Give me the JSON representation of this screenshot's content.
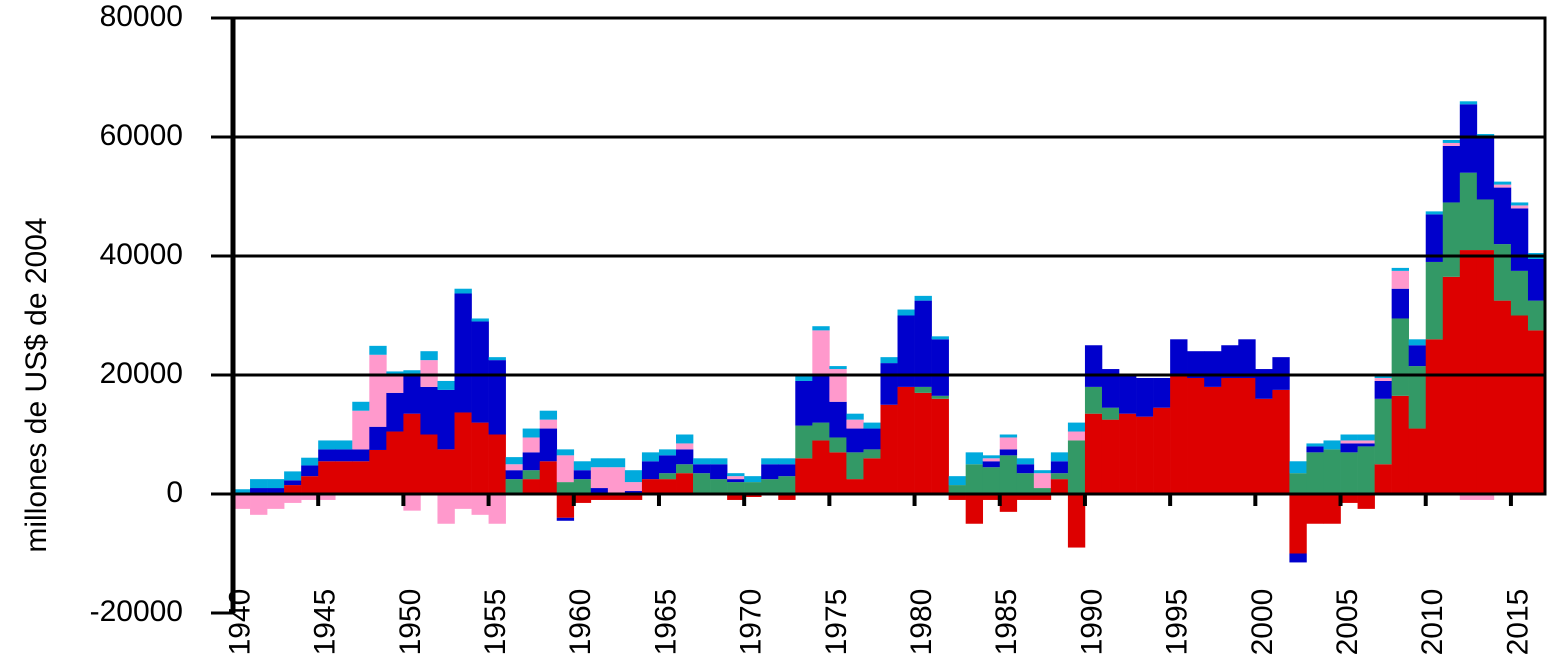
{
  "chart_data": {
    "type": "stacked-bar",
    "y_label": "millones de US$ de 2004",
    "x": [
      1940,
      1941,
      1942,
      1943,
      1944,
      1945,
      1946,
      1947,
      1948,
      1949,
      1950,
      1951,
      1952,
      1953,
      1954,
      1955,
      1956,
      1957,
      1958,
      1959,
      1960,
      1961,
      1962,
      1963,
      1964,
      1965,
      1966,
      1967,
      1968,
      1969,
      1970,
      1971,
      1972,
      1973,
      1974,
      1975,
      1976,
      1977,
      1978,
      1979,
      1980,
      1981,
      1982,
      1983,
      1984,
      1985,
      1986,
      1987,
      1988,
      1989,
      1990,
      1991,
      1992,
      1993,
      1994,
      1995,
      1996,
      1997,
      1998,
      1999,
      2000,
      2001,
      2002,
      2003,
      2004,
      2005,
      2006,
      2007,
      2008,
      2009,
      2010,
      2011,
      2012,
      2013,
      2014,
      2015,
      2016
    ],
    "xlim": [
      1939.5,
      2016.5
    ],
    "xticks": [
      1940,
      1945,
      1950,
      1955,
      1960,
      1965,
      1970,
      1975,
      1980,
      1985,
      1990,
      1995,
      2000,
      2005,
      2010,
      2015
    ],
    "ylim": [
      -20000,
      80000
    ],
    "yticks": [
      -20000,
      0,
      20000,
      40000,
      60000,
      80000
    ],
    "grid": true,
    "series": [
      {
        "color": "#dd0000",
        "values": [
          0,
          0,
          0,
          1500,
          3000,
          5500,
          5500,
          5500,
          7400,
          10500,
          13500,
          10000,
          7500,
          13700,
          12000,
          10000,
          0,
          2500,
          5500,
          -4000,
          -1500,
          -1000,
          -1000,
          -1000,
          2500,
          2500,
          3500,
          0,
          0,
          -1000,
          -500,
          0,
          -1000,
          6000,
          9000,
          7000,
          2500,
          6000,
          15000,
          18000,
          17000,
          16000,
          -1000,
          -5000,
          -1000,
          -3000,
          -1000,
          -1000,
          2500,
          -9000,
          13500,
          12500,
          13500,
          13000,
          14500,
          20000,
          19500,
          18000,
          19500,
          19500,
          16000,
          17500,
          -10000,
          -5000,
          -5000,
          -1500,
          -2500,
          5000,
          16500,
          11000,
          26000,
          36500,
          41000,
          41000,
          32500,
          30000,
          27500
        ]
      },
      {
        "color": "#339966",
        "values": [
          0,
          0,
          0,
          0,
          0,
          0,
          0,
          0,
          0,
          0,
          0,
          0,
          0,
          0,
          0,
          0,
          2500,
          1500,
          0,
          2000,
          2500,
          0,
          0,
          0,
          0,
          1000,
          1500,
          3500,
          2500,
          2000,
          2000,
          2500,
          3000,
          5500,
          3000,
          2500,
          4500,
          1500,
          0,
          0,
          1000,
          500,
          1500,
          5000,
          4500,
          6500,
          3500,
          1000,
          1000,
          9000,
          4500,
          2000,
          0,
          0,
          0,
          0,
          0,
          0,
          0,
          0,
          0,
          0,
          3500,
          7000,
          7500,
          7000,
          8000,
          11000,
          13000,
          10500,
          13000,
          12500,
          13000,
          8500,
          9500,
          7500,
          5000
        ]
      },
      {
        "color": "#0000cc",
        "values": [
          0,
          1000,
          1000,
          800,
          1800,
          2000,
          2000,
          2000,
          3900,
          6500,
          6500,
          8000,
          10000,
          20000,
          17000,
          12500,
          1500,
          3000,
          5500,
          -500,
          1500,
          1000,
          0,
          500,
          3000,
          3000,
          2500,
          1500,
          2500,
          500,
          0,
          2500,
          2000,
          7500,
          8000,
          6000,
          4000,
          3500,
          7000,
          12000,
          14500,
          9500,
          0,
          0,
          1000,
          1000,
          1500,
          0,
          2000,
          0,
          7000,
          6500,
          6500,
          6500,
          5000,
          6000,
          4500,
          6000,
          5500,
          6500,
          5000,
          5500,
          -1500,
          1000,
          0,
          1500,
          500,
          3000,
          5000,
          3500,
          8000,
          9500,
          11500,
          10500,
          9500,
          10500,
          7000
        ]
      },
      {
        "color": "#ff99cc",
        "values": [
          -2500,
          -3500,
          -2500,
          -1500,
          -1000,
          -1000,
          0,
          6500,
          12100,
          2800,
          -2800,
          4500,
          -5000,
          -2500,
          -3500,
          -5000,
          1000,
          2500,
          1500,
          4500,
          0,
          3500,
          4500,
          1500,
          0,
          0,
          1000,
          0,
          0,
          500,
          0,
          0,
          0,
          0,
          7500,
          5500,
          1500,
          0,
          0,
          0,
          0,
          0,
          0,
          0,
          500,
          2000,
          0,
          2500,
          0,
          1500,
          0,
          0,
          0,
          0,
          0,
          0,
          0,
          0,
          0,
          0,
          0,
          0,
          0,
          0,
          0,
          500,
          500,
          500,
          3000,
          0,
          0,
          500,
          -1000,
          -1000,
          500,
          500,
          0
        ]
      },
      {
        "color": "#00aadd",
        "values": [
          800,
          1500,
          1500,
          1500,
          1300,
          1500,
          1500,
          1500,
          1500,
          800,
          800,
          1500,
          1500,
          800,
          500,
          500,
          1200,
          1500,
          1500,
          1000,
          1500,
          1500,
          1500,
          2000,
          1500,
          1000,
          1500,
          1000,
          1000,
          500,
          1000,
          1000,
          1000,
          800,
          700,
          500,
          1000,
          1000,
          1000,
          1000,
          800,
          500,
          1500,
          2000,
          500,
          500,
          1000,
          500,
          1500,
          1500,
          0,
          0,
          0,
          0,
          0,
          0,
          0,
          0,
          0,
          0,
          0,
          0,
          2000,
          500,
          1500,
          1000,
          1000,
          500,
          500,
          1000,
          500,
          500,
          500,
          500,
          500,
          500,
          1000
        ]
      }
    ]
  }
}
